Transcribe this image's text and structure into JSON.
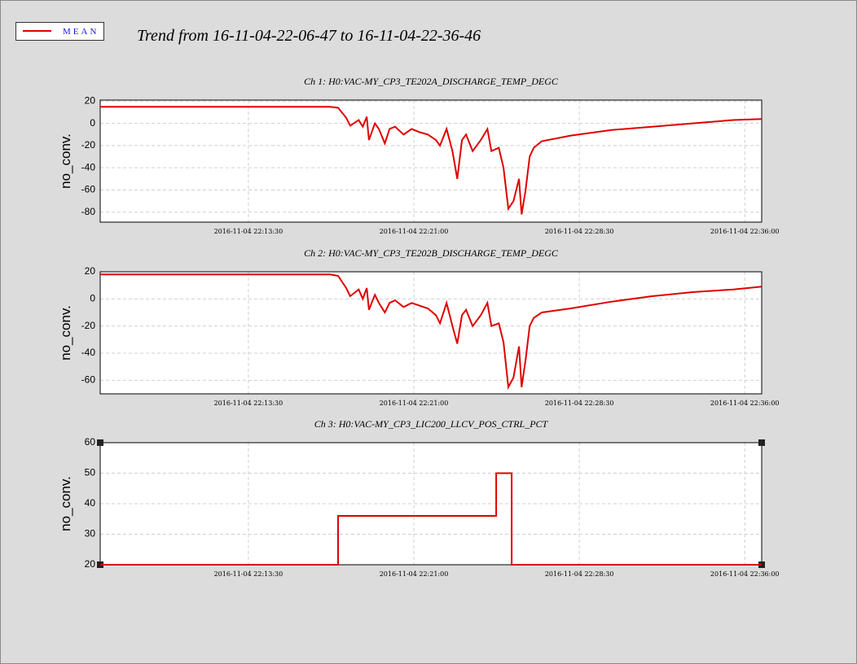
{
  "title": "Trend from 16-11-04-22-06-47 to 16-11-04-22-36-46",
  "legend": {
    "name": "MEAN",
    "color": "#e00000"
  },
  "chart_data": [
    {
      "type": "line",
      "title": "Ch 1: H0:VAC-MY_CP3_TE202A_DISCHARGE_TEMP_DEGC",
      "ylabel": "no_conv.",
      "color": "#e00000",
      "grid": true,
      "xlim": [
        "2016-11-04 22:06:47",
        "2016-11-04 22:36:46"
      ],
      "xticks": [
        "2016-11-04 22:13:30",
        "2016-11-04 22:21:00",
        "2016-11-04 22:28:30",
        "2016-11-04 22:36:00"
      ],
      "ylim": [
        -89,
        21
      ],
      "yticks": [
        -80,
        -60,
        -40,
        -20,
        0,
        20
      ],
      "x": [
        "2016-11-04 22:06:47",
        "2016-11-04 22:17:12",
        "2016-11-04 22:17:34",
        "2016-11-04 22:17:56",
        "2016-11-04 22:18:07",
        "2016-11-04 22:18:30",
        "2016-11-04 22:18:41",
        "2016-11-04 22:18:52",
        "2016-11-04 22:18:58",
        "2016-11-04 22:19:14",
        "2016-11-04 22:19:25",
        "2016-11-04 22:19:41",
        "2016-11-04 22:19:54",
        "2016-11-04 22:20:09",
        "2016-11-04 22:20:32",
        "2016-11-04 22:20:54",
        "2016-11-04 22:21:16",
        "2016-11-04 22:21:38",
        "2016-11-04 22:22:00",
        "2016-11-04 22:22:11",
        "2016-11-04 22:22:29",
        "2016-11-04 22:22:45",
        "2016-11-04 22:22:58",
        "2016-11-04 22:23:11",
        "2016-11-04 22:23:22",
        "2016-11-04 22:23:40",
        "2016-11-04 22:24:02",
        "2016-11-04 22:24:20",
        "2016-11-04 22:24:31",
        "2016-11-04 22:24:51",
        "2016-11-04 22:25:04",
        "2016-11-04 22:25:17",
        "2016-11-04 22:25:31",
        "2016-11-04 22:25:46",
        "2016-11-04 22:25:53",
        "2016-11-04 22:26:04",
        "2016-11-04 22:26:15",
        "2016-11-04 22:26:26",
        "2016-11-04 22:26:48",
        "2016-11-04 22:28:07",
        "2016-11-04 22:29:58",
        "2016-11-04 22:31:48",
        "2016-11-04 22:33:38",
        "2016-11-04 22:35:29",
        "2016-11-04 22:36:46"
      ],
      "values": [
        15,
        15,
        14,
        5,
        -2,
        3,
        -3,
        6,
        -15,
        0,
        -5,
        -18,
        -5,
        -3,
        -10,
        -5,
        -8,
        -10,
        -15,
        -20,
        -5,
        -25,
        -50,
        -15,
        -10,
        -25,
        -15,
        -5,
        -25,
        -22,
        -40,
        -77,
        -70,
        -50,
        -82,
        -60,
        -30,
        -22,
        -16,
        -11,
        -6,
        -3,
        0,
        3,
        4
      ]
    },
    {
      "type": "line",
      "title": "Ch 2: H0:VAC-MY_CP3_TE202B_DISCHARGE_TEMP_DEGC",
      "ylabel": "no_conv.",
      "color": "#e00000",
      "grid": true,
      "xlim": [
        "2016-11-04 22:06:47",
        "2016-11-04 22:36:46"
      ],
      "xticks": [
        "2016-11-04 22:13:30",
        "2016-11-04 22:21:00",
        "2016-11-04 22:28:30",
        "2016-11-04 22:36:00"
      ],
      "ylim": [
        -70,
        20
      ],
      "yticks": [
        -60,
        -40,
        -20,
        0,
        20
      ],
      "x": [
        "2016-11-04 22:06:47",
        "2016-11-04 22:17:12",
        "2016-11-04 22:17:34",
        "2016-11-04 22:17:56",
        "2016-11-04 22:18:07",
        "2016-11-04 22:18:30",
        "2016-11-04 22:18:41",
        "2016-11-04 22:18:52",
        "2016-11-04 22:18:58",
        "2016-11-04 22:19:14",
        "2016-11-04 22:19:25",
        "2016-11-04 22:19:41",
        "2016-11-04 22:19:54",
        "2016-11-04 22:20:09",
        "2016-11-04 22:20:32",
        "2016-11-04 22:20:54",
        "2016-11-04 22:21:16",
        "2016-11-04 22:21:38",
        "2016-11-04 22:22:00",
        "2016-11-04 22:22:11",
        "2016-11-04 22:22:29",
        "2016-11-04 22:22:45",
        "2016-11-04 22:22:58",
        "2016-11-04 22:23:11",
        "2016-11-04 22:23:22",
        "2016-11-04 22:23:40",
        "2016-11-04 22:24:02",
        "2016-11-04 22:24:20",
        "2016-11-04 22:24:31",
        "2016-11-04 22:24:51",
        "2016-11-04 22:25:04",
        "2016-11-04 22:25:17",
        "2016-11-04 22:25:31",
        "2016-11-04 22:25:46",
        "2016-11-04 22:25:53",
        "2016-11-04 22:26:04",
        "2016-11-04 22:26:15",
        "2016-11-04 22:26:26",
        "2016-11-04 22:26:48",
        "2016-11-04 22:28:07",
        "2016-11-04 22:29:58",
        "2016-11-04 22:31:48",
        "2016-11-04 22:33:38",
        "2016-11-04 22:35:29",
        "2016-11-04 22:36:46"
      ],
      "values": [
        18,
        18,
        17,
        8,
        2,
        7,
        0,
        8,
        -8,
        3,
        -3,
        -10,
        -3,
        -1,
        -6,
        -3,
        -5,
        -7,
        -12,
        -18,
        -3,
        -20,
        -33,
        -12,
        -8,
        -20,
        -12,
        -3,
        -20,
        -18,
        -32,
        -65,
        -58,
        -35,
        -65,
        -45,
        -20,
        -14,
        -10,
        -7,
        -2,
        2,
        5,
        7,
        9
      ]
    },
    {
      "type": "line",
      "title": "Ch 3: H0:VAC-MY_CP3_LIC200_LLCV_POS_CTRL_PCT",
      "ylabel": "no_conv.",
      "color": "#e00000",
      "grid": true,
      "xlim": [
        "2016-11-04 22:06:47",
        "2016-11-04 22:36:46"
      ],
      "xticks": [
        "2016-11-04 22:13:30",
        "2016-11-04 22:21:00",
        "2016-11-04 22:28:30",
        "2016-11-04 22:36:00"
      ],
      "ylim": [
        20,
        60
      ],
      "yticks": [
        20,
        30,
        40,
        50,
        60
      ],
      "x": [
        "2016-11-04 22:06:47",
        "2016-11-04 22:17:34",
        "2016-11-04 22:17:34",
        "2016-11-04 22:24:44",
        "2016-11-04 22:24:44",
        "2016-11-04 22:25:26",
        "2016-11-04 22:25:26",
        "2016-11-04 22:36:46"
      ],
      "values": [
        20,
        20,
        36,
        36,
        50,
        50,
        20,
        20
      ]
    }
  ]
}
